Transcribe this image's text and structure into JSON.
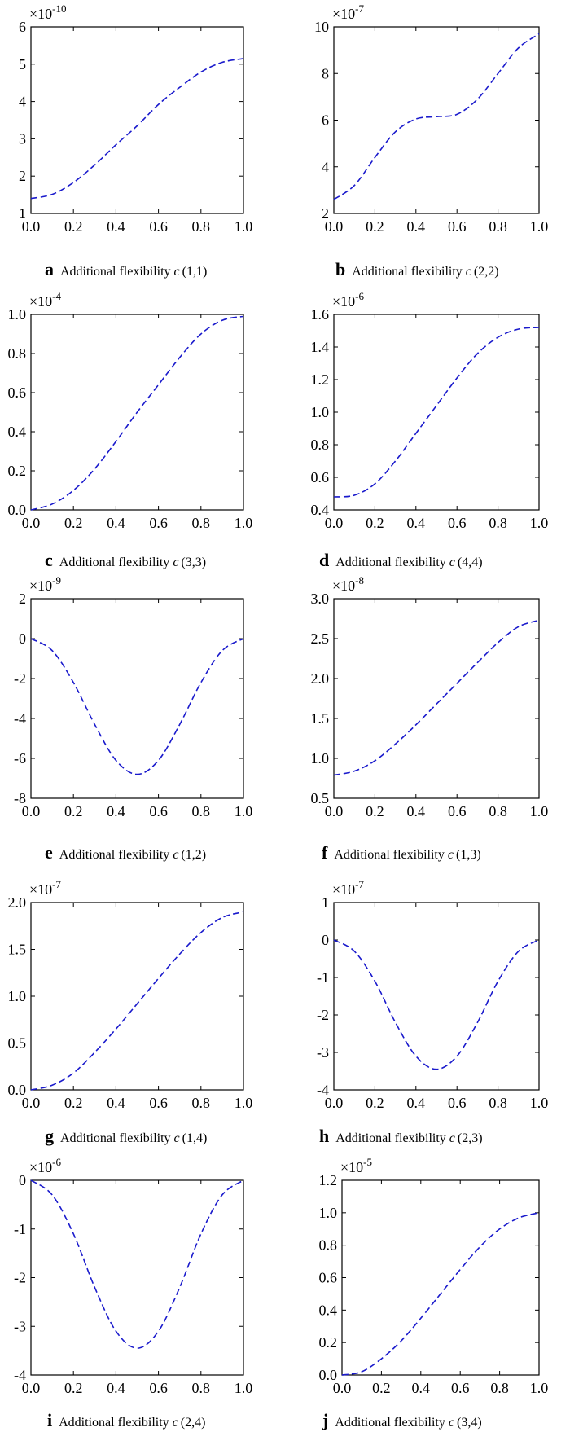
{
  "chart_data": [
    {
      "type": "line",
      "panel_label": "a",
      "caption_text": "Additional flexibility",
      "caption_var": "c",
      "caption_index": "(1,1)",
      "exponent_base": "×10",
      "exponent_power": "-10",
      "x_ticks": [
        "0.0",
        "0.2",
        "0.4",
        "0.6",
        "0.8",
        "1.0"
      ],
      "xlim": [
        0,
        1
      ],
      "y_ticks": [
        "1",
        "2",
        "3",
        "4",
        "5",
        "6"
      ],
      "y_tick_values": [
        1,
        2,
        3,
        4,
        5,
        6
      ],
      "ylim": [
        1,
        6
      ],
      "series": [
        {
          "name": "c(1,1)",
          "line_style": "dashed",
          "x": [
            0,
            0.1,
            0.2,
            0.3,
            0.4,
            0.5,
            0.6,
            0.7,
            0.8,
            0.9,
            1.0
          ],
          "values": [
            1.4,
            1.51,
            1.83,
            2.3,
            2.84,
            3.35,
            3.92,
            4.38,
            4.79,
            5.05,
            5.15
          ]
        }
      ]
    },
    {
      "type": "line",
      "panel_label": "b",
      "caption_text": "Additional flexibility",
      "caption_var": "c",
      "caption_index": "(2,2)",
      "exponent_base": "×10",
      "exponent_power": "-7",
      "x_ticks": [
        "0.0",
        "0.2",
        "0.4",
        "0.6",
        "0.8",
        "1.0"
      ],
      "xlim": [
        0,
        1
      ],
      "y_ticks": [
        "2",
        "4",
        "6",
        "8",
        "10"
      ],
      "y_tick_values": [
        2,
        4,
        6,
        8,
        10
      ],
      "ylim": [
        2,
        10
      ],
      "series": [
        {
          "name": "c(2,2)",
          "line_style": "dashed",
          "x": [
            0,
            0.1,
            0.2,
            0.3,
            0.4,
            0.5,
            0.6,
            0.7,
            0.8,
            0.9,
            1.0
          ],
          "values": [
            2.6,
            3.2,
            4.4,
            5.5,
            6.05,
            6.15,
            6.25,
            6.9,
            8.0,
            9.1,
            9.7
          ]
        }
      ]
    },
    {
      "type": "line",
      "panel_label": "c",
      "caption_text": "Additional flexibility",
      "caption_var": "c",
      "caption_index": "(3,3)",
      "exponent_base": "×10",
      "exponent_power": "-4",
      "x_ticks": [
        "0.0",
        "0.2",
        "0.4",
        "0.6",
        "0.8",
        "1.0"
      ],
      "xlim": [
        0,
        1
      ],
      "y_ticks": [
        "0.0",
        "0.2",
        "0.4",
        "0.6",
        "0.8",
        "1.0"
      ],
      "y_tick_values": [
        0,
        0.2,
        0.4,
        0.6,
        0.8,
        1.0
      ],
      "ylim": [
        0,
        1.0
      ],
      "series": [
        {
          "name": "c(3,3)",
          "line_style": "dashed",
          "x": [
            0,
            0.1,
            0.2,
            0.3,
            0.4,
            0.5,
            0.6,
            0.7,
            0.8,
            0.9,
            1.0
          ],
          "values": [
            0.0,
            0.03,
            0.1,
            0.21,
            0.35,
            0.5,
            0.64,
            0.78,
            0.9,
            0.97,
            0.99
          ]
        }
      ]
    },
    {
      "type": "line",
      "panel_label": "d",
      "caption_text": "Additional flexibility",
      "caption_var": "c",
      "caption_index": "(4,4)",
      "exponent_base": "×10",
      "exponent_power": "-6",
      "x_ticks": [
        "0.0",
        "0.2",
        "0.4",
        "0.6",
        "0.8",
        "1.0"
      ],
      "xlim": [
        0,
        1
      ],
      "y_ticks": [
        "0.4",
        "0.6",
        "0.8",
        "1.0",
        "1.2",
        "1.4",
        "1.6"
      ],
      "y_tick_values": [
        0.4,
        0.6,
        0.8,
        1.0,
        1.2,
        1.4,
        1.6
      ],
      "ylim": [
        0.4,
        1.6
      ],
      "series": [
        {
          "name": "c(4,4)",
          "line_style": "dashed",
          "x": [
            0,
            0.1,
            0.2,
            0.3,
            0.4,
            0.5,
            0.6,
            0.7,
            0.8,
            0.9,
            1.0
          ],
          "values": [
            0.48,
            0.49,
            0.56,
            0.7,
            0.87,
            1.04,
            1.21,
            1.36,
            1.46,
            1.51,
            1.52
          ]
        }
      ]
    },
    {
      "type": "line",
      "panel_label": "e",
      "caption_text": "Additional flexibility",
      "caption_var": "c",
      "caption_index": "(1,2)",
      "exponent_base": "×10",
      "exponent_power": "-9",
      "x_ticks": [
        "0.0",
        "0.2",
        "0.4",
        "0.6",
        "0.8",
        "1.0"
      ],
      "xlim": [
        0,
        1
      ],
      "y_ticks": [
        "-8",
        "-6",
        "-4",
        "-2",
        "0",
        "2"
      ],
      "y_tick_values": [
        -8,
        -6,
        -4,
        -2,
        0,
        2
      ],
      "ylim": [
        -8,
        2
      ],
      "series": [
        {
          "name": "c(1,2)",
          "line_style": "dashed",
          "x": [
            0,
            0.1,
            0.2,
            0.3,
            0.4,
            0.5,
            0.6,
            0.7,
            0.8,
            0.9,
            1.0
          ],
          "values": [
            0.0,
            -0.6,
            -2.2,
            -4.3,
            -6.1,
            -6.8,
            -6.1,
            -4.3,
            -2.2,
            -0.6,
            0.0
          ]
        }
      ]
    },
    {
      "type": "line",
      "panel_label": "f",
      "caption_text": "Additional flexibility",
      "caption_var": "c",
      "caption_index": "(1,3)",
      "exponent_base": "×10",
      "exponent_power": "-8",
      "x_ticks": [
        "0.0",
        "0.2",
        "0.4",
        "0.6",
        "0.8",
        "1.0"
      ],
      "xlim": [
        0,
        1
      ],
      "y_ticks": [
        "0.5",
        "1.0",
        "1.5",
        "2.0",
        "2.5",
        "3.0"
      ],
      "y_tick_values": [
        0.5,
        1.0,
        1.5,
        2.0,
        2.5,
        3.0
      ],
      "ylim": [
        0.5,
        3.0
      ],
      "series": [
        {
          "name": "c(1,3)",
          "line_style": "dashed",
          "x": [
            0,
            0.1,
            0.2,
            0.3,
            0.4,
            0.5,
            0.6,
            0.7,
            0.8,
            0.9,
            1.0
          ],
          "values": [
            0.79,
            0.84,
            0.97,
            1.18,
            1.42,
            1.68,
            1.94,
            2.2,
            2.45,
            2.65,
            2.73
          ]
        }
      ]
    },
    {
      "type": "line",
      "panel_label": "g",
      "caption_text": "Additional flexibility",
      "caption_var": "c",
      "caption_index": "(1,4)",
      "exponent_base": "×10",
      "exponent_power": "-7",
      "x_ticks": [
        "0.0",
        "0.2",
        "0.4",
        "0.6",
        "0.8",
        "1.0"
      ],
      "xlim": [
        0,
        1
      ],
      "y_ticks": [
        "0.0",
        "0.5",
        "1.0",
        "1.5",
        "2.0"
      ],
      "y_tick_values": [
        0,
        0.5,
        1.0,
        1.5,
        2.0
      ],
      "ylim": [
        0,
        2.0
      ],
      "series": [
        {
          "name": "c(1,4)",
          "line_style": "dashed",
          "x": [
            0,
            0.1,
            0.2,
            0.3,
            0.4,
            0.5,
            0.6,
            0.7,
            0.8,
            0.9,
            1.0
          ],
          "values": [
            0.0,
            0.05,
            0.18,
            0.4,
            0.65,
            0.92,
            1.19,
            1.45,
            1.68,
            1.84,
            1.9
          ]
        }
      ]
    },
    {
      "type": "line",
      "panel_label": "h",
      "caption_text": "Additional flexibility",
      "caption_var": "c",
      "caption_index": "(2,3)",
      "exponent_base": "×10",
      "exponent_power": "-7",
      "x_ticks": [
        "0.0",
        "0.2",
        "0.4",
        "0.6",
        "0.8",
        "1.0"
      ],
      "xlim": [
        0,
        1
      ],
      "y_ticks": [
        "-4",
        "-3",
        "-2",
        "-1",
        "0",
        "1"
      ],
      "y_tick_values": [
        -4,
        -3,
        -2,
        -1,
        0,
        1
      ],
      "ylim": [
        -4,
        1
      ],
      "series": [
        {
          "name": "c(2,3)",
          "line_style": "dashed",
          "x": [
            0,
            0.1,
            0.2,
            0.3,
            0.4,
            0.5,
            0.6,
            0.7,
            0.8,
            0.9,
            1.0
          ],
          "values": [
            0.0,
            -0.3,
            -1.1,
            -2.2,
            -3.1,
            -3.45,
            -3.1,
            -2.2,
            -1.1,
            -0.3,
            0.0
          ]
        }
      ]
    },
    {
      "type": "line",
      "panel_label": "i",
      "caption_text": "Additional flexibility",
      "caption_var": "c",
      "caption_index": "(2,4)",
      "exponent_base": "×10",
      "exponent_power": "-6",
      "x_ticks": [
        "0.0",
        "0.2",
        "0.4",
        "0.6",
        "0.8",
        "1.0"
      ],
      "xlim": [
        0,
        1
      ],
      "y_ticks": [
        "-4",
        "-3",
        "-2",
        "-1",
        "0"
      ],
      "y_tick_values": [
        -4,
        -3,
        -2,
        -1,
        0
      ],
      "ylim": [
        -4,
        0
      ],
      "series": [
        {
          "name": "c(2,4)",
          "line_style": "dashed",
          "x": [
            0,
            0.1,
            0.2,
            0.3,
            0.4,
            0.5,
            0.6,
            0.7,
            0.8,
            0.9,
            1.0
          ],
          "values": [
            0.0,
            -0.3,
            -1.1,
            -2.2,
            -3.1,
            -3.45,
            -3.1,
            -2.2,
            -1.1,
            -0.3,
            0.0
          ]
        }
      ]
    },
    {
      "type": "line",
      "panel_label": "j",
      "caption_text": "Additional flexibility",
      "caption_var": "c",
      "caption_index": "(3,4)",
      "exponent_base": "×10",
      "exponent_power": "-5",
      "x_ticks": [
        "0.0",
        "0.2",
        "0.4",
        "0.6",
        "0.8",
        "1.0"
      ],
      "xlim": [
        0,
        1
      ],
      "y_ticks": [
        "0.0",
        "0.2",
        "0.4",
        "0.6",
        "0.8",
        "1.0",
        "1.2"
      ],
      "y_tick_values": [
        0,
        0.2,
        0.4,
        0.6,
        0.8,
        1.0,
        1.2
      ],
      "ylim": [
        0,
        1.2
      ],
      "series": [
        {
          "name": "c(3,4)",
          "line_style": "dashed",
          "x": [
            0,
            0.1,
            0.2,
            0.3,
            0.4,
            0.5,
            0.6,
            0.7,
            0.8,
            0.9,
            1.0
          ],
          "values": [
            0.0,
            0.02,
            0.1,
            0.21,
            0.35,
            0.5,
            0.65,
            0.79,
            0.9,
            0.97,
            1.0
          ]
        }
      ]
    }
  ],
  "colors": {
    "line": "#1a1acc",
    "axis": "#000000",
    "background": "#ffffff"
  }
}
